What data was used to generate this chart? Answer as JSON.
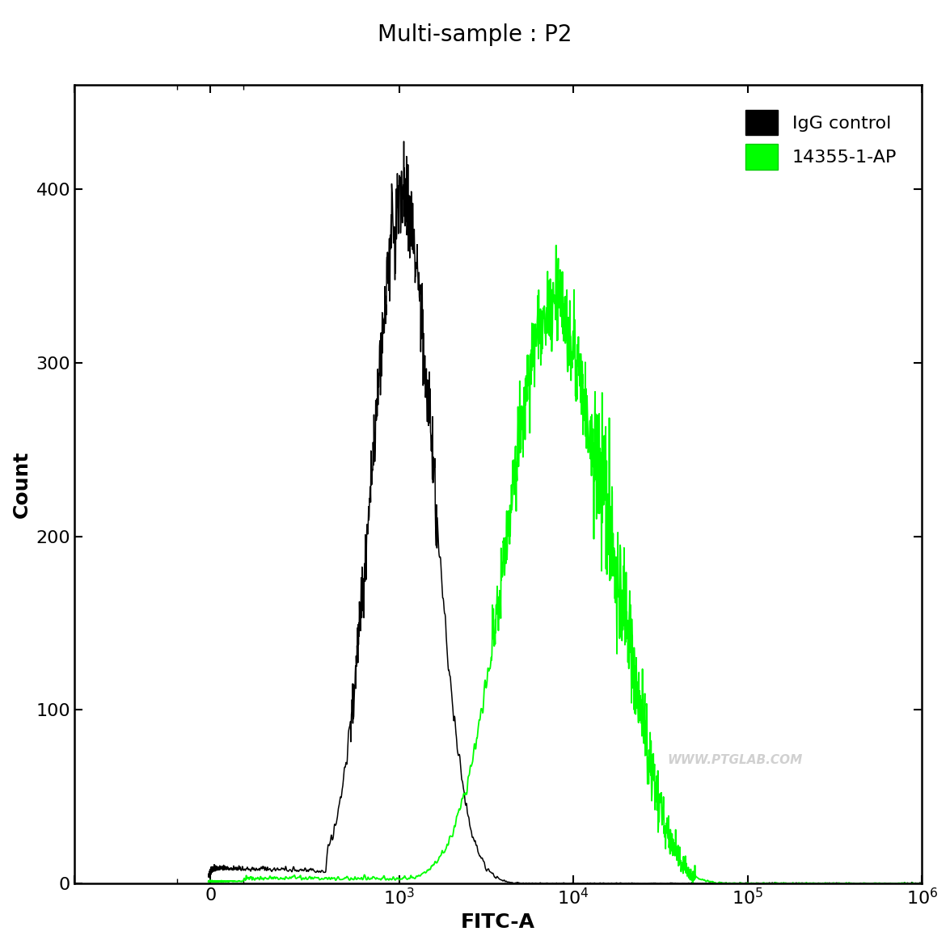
{
  "title": "Multi-sample : P2",
  "xlabel": "FITC-A",
  "ylabel": "Count",
  "ylim": [
    0,
    460
  ],
  "yticks": [
    0,
    100,
    200,
    300,
    400
  ],
  "background_color": "#ffffff",
  "igg_color": "#000000",
  "ab_color": "#00ff00",
  "legend_labels": [
    "IgG control",
    "14355-1-AP"
  ],
  "watermark": "WWW.PTGLAB.COM",
  "title_fontsize": 20,
  "axis_label_fontsize": 18,
  "tick_fontsize": 16,
  "legend_fontsize": 16,
  "igg_peak_log": 3.02,
  "igg_peak_count": 395,
  "igg_sigma": 0.175,
  "ab_peak_log": 3.88,
  "ab_peak_count": 333,
  "ab_sigma": 0.26,
  "linthresh": 262
}
